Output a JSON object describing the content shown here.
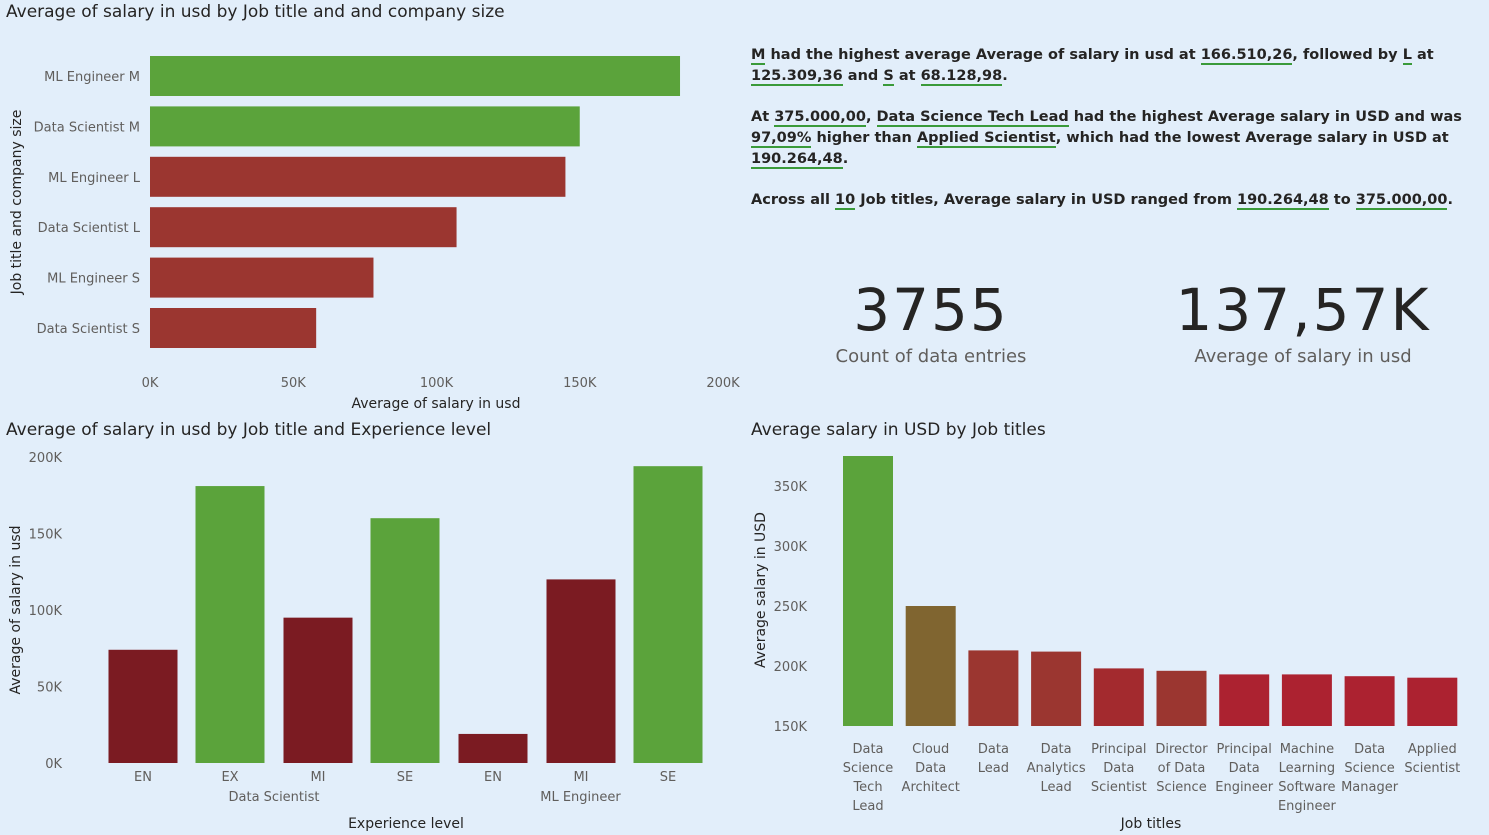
{
  "charts": {
    "company_size": {
      "title": "Average of salary in usd by Job title and and company size",
      "xlabel": "Average of salary in usd",
      "ylabel": "Job title and company size"
    },
    "experience": {
      "title": "Average of salary in usd by Job title and Experience level",
      "xlabel": "Experience level",
      "ylabel": "Average of salary in usd"
    },
    "job_titles": {
      "title": "Average salary in USD by Job titles",
      "xlabel": "Job titles",
      "ylabel": "Average salary in USD"
    }
  },
  "narrative": {
    "p1": [
      {
        "t": "M",
        "h": true
      },
      {
        "t": " had the highest average Average of salary in usd at "
      },
      {
        "t": "166.510,26",
        "h": true
      },
      {
        "t": ", followed by "
      },
      {
        "t": "L",
        "h": true
      },
      {
        "t": " at "
      },
      {
        "t": "125.309,36",
        "h": true
      },
      {
        "t": " and "
      },
      {
        "t": "S",
        "h": true
      },
      {
        "t": " at "
      },
      {
        "t": "68.128,98",
        "h": true
      },
      {
        "t": "."
      }
    ],
    "p2": [
      {
        "t": "At "
      },
      {
        "t": "375.000,00",
        "h": true
      },
      {
        "t": ", "
      },
      {
        "t": "Data Science Tech Lead",
        "h": true
      },
      {
        "t": " had the highest Average salary in USD and was "
      },
      {
        "t": "97,09%",
        "h": true
      },
      {
        "t": " higher than "
      },
      {
        "t": "Applied Scientist",
        "h": true
      },
      {
        "t": ", which had the lowest Average salary in USD at "
      },
      {
        "t": "190.264,48",
        "h": true
      },
      {
        "t": "."
      }
    ],
    "p3": [
      {
        "t": "Across all "
      },
      {
        "t": "10",
        "h": true
      },
      {
        "t": " Job titles, Average salary in USD ranged from "
      },
      {
        "t": "190.264,48",
        "h": true
      },
      {
        "t": " to "
      },
      {
        "t": "375.000,00",
        "h": true
      },
      {
        "t": "."
      }
    ]
  },
  "kpis": {
    "count_value": "3755",
    "count_label": "Count of data entries",
    "avg_value": "137,57K",
    "avg_label": "Average of salary in usd"
  },
  "chart_data": [
    {
      "type": "bar",
      "orientation": "horizontal",
      "categories": [
        "ML Engineer M",
        "Data Scientist M",
        "ML Engineer L",
        "Data Scientist L",
        "ML Engineer S",
        "Data Scientist S"
      ],
      "values": [
        185000,
        150000,
        145000,
        107000,
        78000,
        58000
      ],
      "colors": [
        "#5ba33b",
        "#5ba33b",
        "#9b3630",
        "#9b3630",
        "#9b3630",
        "#9b3630"
      ],
      "xlim": [
        0,
        200000
      ],
      "xticks": [
        "0K",
        "50K",
        "100K",
        "150K",
        "200K"
      ]
    },
    {
      "type": "bar",
      "categories": [
        "EN",
        "EX",
        "MI",
        "SE",
        "EN",
        "MI",
        "SE"
      ],
      "groups": [
        {
          "name": "Data Scientist",
          "count": 4
        },
        {
          "name": "ML Engineer",
          "count": 3
        }
      ],
      "values": [
        74000,
        181000,
        95000,
        160000,
        19000,
        120000,
        194000
      ],
      "colors": [
        "#7b1b22",
        "#5ba33b",
        "#7b1b22",
        "#5ba33b",
        "#7b1b22",
        "#7b1b22",
        "#5ba33b"
      ],
      "ylim": [
        0,
        200000
      ],
      "yticks": [
        "0K",
        "50K",
        "100K",
        "150K",
        "200K"
      ]
    },
    {
      "type": "bar",
      "categories": [
        "Data Science Tech Lead",
        "Cloud Data Architect",
        "Data Lead",
        "Data Analytics Lead",
        "Principal Data Scientist",
        "Director of Data Science",
        "Principal Data Engineer",
        "Machine Learning Software Engineer",
        "Data Science Manager",
        "Applied Scientist"
      ],
      "category_lines": [
        [
          "Data",
          "Science",
          "Tech",
          "Lead"
        ],
        [
          "Cloud",
          "Data",
          "Architect"
        ],
        [
          "Data",
          "Lead"
        ],
        [
          "Data",
          "Analytics",
          "Lead"
        ],
        [
          "Principal",
          "Data",
          "Scientist"
        ],
        [
          "Director",
          "of Data",
          "Science"
        ],
        [
          "Principal",
          "Data",
          "Engineer"
        ],
        [
          "Machine",
          "Learning",
          "Software",
          "Engineer"
        ],
        [
          "Data",
          "Science",
          "Manager"
        ],
        [
          "Applied",
          "Scientist"
        ]
      ],
      "values": [
        375000,
        250000,
        213000,
        212000,
        198000,
        196000,
        193000,
        193000,
        191500,
        190264.48
      ],
      "colors": [
        "#5ba33b",
        "#806530",
        "#9b3630",
        "#9b3630",
        "#a32a2e",
        "#9b3630",
        "#ac2230",
        "#ac2230",
        "#ac2230",
        "#ac2230"
      ],
      "ylim": [
        150000,
        380000
      ],
      "yticks": [
        "150K",
        "200K",
        "250K",
        "300K",
        "350K"
      ]
    }
  ]
}
